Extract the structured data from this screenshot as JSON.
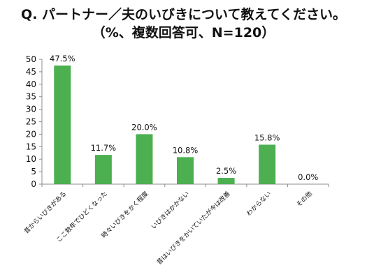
{
  "title_line1": "Q. パートナー／夫のいびきについて教えてください。",
  "title_line2": "（%、複数回答可、N=120）",
  "colors": {
    "bar": "#4caf50",
    "axis": "#8c8c8c"
  },
  "chart_data": {
    "type": "bar",
    "categories": [
      "昔からいびきがある",
      "ここ数年でひどくなった",
      "時々いびきをかく程度",
      "いびきはかかない",
      "昔はいびきをかいていたが今は改善",
      "わからない",
      "その他"
    ],
    "values": [
      47.5,
      11.7,
      20.0,
      10.8,
      2.5,
      15.8,
      0.0
    ],
    "data_labels": [
      "47.5%",
      "11.7%",
      "20.0%",
      "10.8%",
      "2.5%",
      "15.8%",
      "0.0%"
    ],
    "yticks": [
      0,
      5,
      10,
      15,
      20,
      25,
      30,
      35,
      40,
      45,
      50
    ],
    "ylim": [
      0,
      50
    ],
    "grid": false,
    "legend": "none"
  }
}
